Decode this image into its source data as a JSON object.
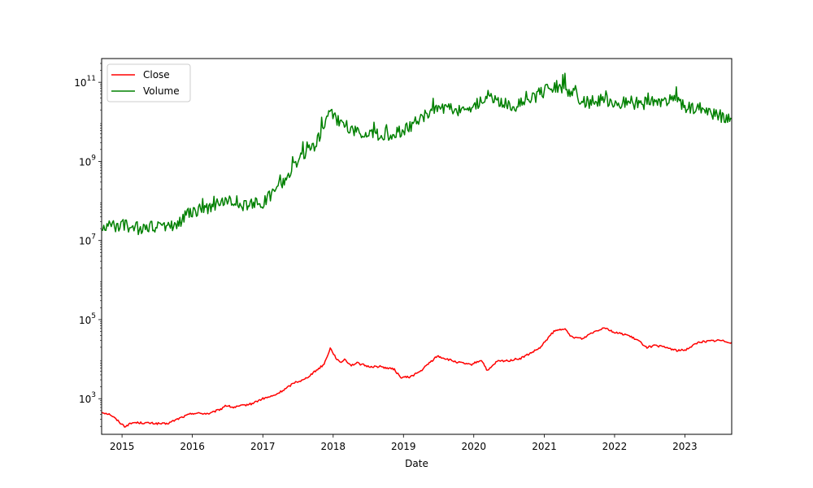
{
  "chart_data": {
    "type": "line",
    "title": "",
    "xlabel": "Date",
    "ylabel": "",
    "yscale": "log",
    "xlim": [
      "2014-09-17",
      "2023-09-01"
    ],
    "ylim_exponents": [
      2.1,
      11.6
    ],
    "x_ticks": [
      "2015",
      "2016",
      "2017",
      "2018",
      "2019",
      "2020",
      "2021",
      "2022",
      "2023"
    ],
    "y_ticks": [
      {
        "base": "10",
        "exp": "3",
        "value": 1000
      },
      {
        "base": "10",
        "exp": "5",
        "value": 100000
      },
      {
        "base": "10",
        "exp": "7",
        "value": 10000000
      },
      {
        "base": "10",
        "exp": "9",
        "value": 1000000000
      },
      {
        "base": "10",
        "exp": "11",
        "value": 100000000000
      }
    ],
    "legend_position": "upper-left",
    "grid": false,
    "series": [
      {
        "name": "Close",
        "color": "#ff0000",
        "x": [
          "2014-09-17",
          "2014-11-01",
          "2015-01-14",
          "2015-03-01",
          "2015-06-01",
          "2015-08-20",
          "2015-11-01",
          "2016-01-01",
          "2016-04-01",
          "2016-06-01",
          "2016-06-20",
          "2016-08-01",
          "2016-11-01",
          "2017-01-01",
          "2017-03-01",
          "2017-05-01",
          "2017-06-15",
          "2017-08-01",
          "2017-10-01",
          "2017-11-15",
          "2017-12-17",
          "2018-01-15",
          "2018-02-06",
          "2018-03-01",
          "2018-04-05",
          "2018-05-05",
          "2018-07-01",
          "2018-09-01",
          "2018-11-15",
          "2018-12-15",
          "2019-02-01",
          "2019-04-01",
          "2019-05-15",
          "2019-06-26",
          "2019-08-01",
          "2019-10-01",
          "2019-12-15",
          "2020-02-10",
          "2020-03-13",
          "2020-05-01",
          "2020-07-01",
          "2020-09-01",
          "2020-11-01",
          "2020-12-15",
          "2021-01-10",
          "2021-02-20",
          "2021-04-14",
          "2021-05-20",
          "2021-07-20",
          "2021-09-01",
          "2021-11-10",
          "2022-01-01",
          "2022-03-01",
          "2022-05-01",
          "2022-06-18",
          "2022-08-01",
          "2022-10-01",
          "2022-11-20",
          "2023-01-01",
          "2023-03-15",
          "2023-05-01",
          "2023-07-01",
          "2023-09-01"
        ],
        "y": [
          460,
          400,
          200,
          250,
          240,
          230,
          330,
          430,
          420,
          560,
          680,
          600,
          740,
          1000,
          1200,
          1800,
          2600,
          3000,
          5000,
          7500,
          19000,
          11000,
          8000,
          10000,
          7000,
          8000,
          6500,
          6500,
          5500,
          3500,
          3500,
          5000,
          8000,
          12000,
          10500,
          8500,
          7200,
          9500,
          5000,
          8800,
          9200,
          10500,
          15000,
          20000,
          30000,
          50000,
          60000,
          37000,
          33000,
          46000,
          64000,
          47000,
          42000,
          30000,
          20000,
          22000,
          19500,
          16500,
          17000,
          27000,
          28500,
          30000,
          26500
        ]
      },
      {
        "name": "Volume",
        "color": "#008000",
        "x": [
          "2014-09-17",
          "2015-01-01",
          "2015-04-01",
          "2015-07-01",
          "2015-10-01",
          "2016-01-01",
          "2016-04-01",
          "2016-07-01",
          "2016-10-01",
          "2017-01-01",
          "2017-04-01",
          "2017-07-01",
          "2017-10-01",
          "2017-12-20",
          "2018-02-01",
          "2018-05-01",
          "2018-08-01",
          "2018-11-01",
          "2019-01-01",
          "2019-04-01",
          "2019-07-01",
          "2019-10-01",
          "2020-01-01",
          "2020-03-15",
          "2020-05-01",
          "2020-08-01",
          "2020-11-01",
          "2021-01-01",
          "2021-03-01",
          "2021-05-15",
          "2021-08-01",
          "2021-11-01",
          "2022-02-01",
          "2022-05-01",
          "2022-08-01",
          "2022-11-01",
          "2023-01-01",
          "2023-03-15",
          "2023-06-01",
          "2023-09-01"
        ],
        "y": [
          20000000,
          25000000,
          20000000,
          22000000,
          25000000,
          55000000,
          70000000,
          120000000,
          75000000,
          90000000,
          250000000,
          1000000000,
          2500000000,
          18000000000,
          9000000000,
          6000000000,
          4500000000,
          5000000000,
          6000000000,
          12000000000,
          25000000000,
          20000000000,
          25000000000,
          45000000000,
          30000000000,
          25000000000,
          40000000000,
          60000000000,
          80000000000,
          60000000000,
          30000000000,
          35000000000,
          30000000000,
          30000000000,
          28000000000,
          35000000000,
          25000000000,
          22000000000,
          15000000000,
          12000000000
        ]
      }
    ]
  }
}
